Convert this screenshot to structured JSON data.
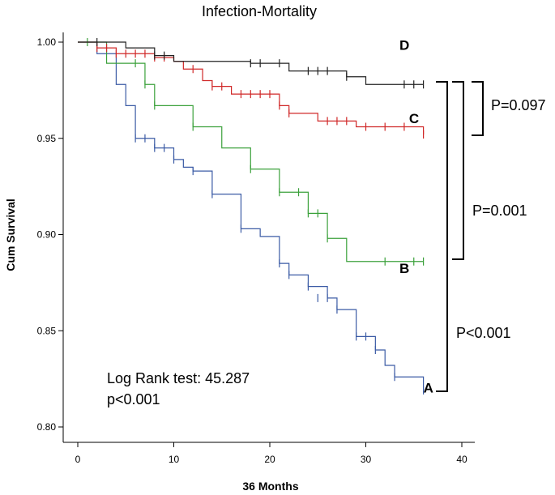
{
  "chart_data": {
    "type": "line",
    "title": "Infection-Mortality",
    "xlabel": "36 Months",
    "ylabel": "Cum Survival",
    "xlim": [
      0,
      40
    ],
    "ylim": [
      0.8,
      1.0
    ],
    "xticks": [
      "0",
      "10",
      "20",
      "30",
      "40"
    ],
    "yticks": [
      "0.80",
      "0.85",
      "0.90",
      "0.95",
      "1.00"
    ],
    "grid": false,
    "series": [
      {
        "name": "A",
        "color": "#3b5ba5",
        "steps": [
          [
            0,
            1.0
          ],
          [
            2,
            0.994
          ],
          [
            4,
            0.978
          ],
          [
            5,
            0.967
          ],
          [
            6,
            0.95
          ],
          [
            8,
            0.945
          ],
          [
            9,
            0.945
          ],
          [
            10,
            0.939
          ],
          [
            11,
            0.935
          ],
          [
            12,
            0.933
          ],
          [
            14,
            0.921
          ],
          [
            17,
            0.903
          ],
          [
            19,
            0.899
          ],
          [
            21,
            0.885
          ],
          [
            22,
            0.879
          ],
          [
            24,
            0.873
          ],
          [
            26,
            0.867
          ],
          [
            27,
            0.861
          ],
          [
            29,
            0.847
          ],
          [
            31,
            0.84
          ],
          [
            32,
            0.832
          ],
          [
            33,
            0.826
          ],
          [
            36,
            0.819
          ]
        ],
        "censors": [
          [
            6,
            0.95
          ],
          [
            7,
            0.95
          ],
          [
            8,
            0.945
          ],
          [
            9,
            0.945
          ],
          [
            10,
            0.939
          ],
          [
            12,
            0.933
          ],
          [
            14,
            0.921
          ],
          [
            17,
            0.903
          ],
          [
            21,
            0.885
          ],
          [
            22,
            0.879
          ],
          [
            24,
            0.873
          ],
          [
            25,
            0.867
          ],
          [
            26,
            0.867
          ],
          [
            27,
            0.861
          ],
          [
            29,
            0.847
          ],
          [
            30,
            0.847
          ],
          [
            31,
            0.84
          ],
          [
            33,
            0.826
          ],
          [
            36,
            0.819
          ]
        ]
      },
      {
        "name": "B",
        "color": "#3ba13b",
        "steps": [
          [
            0,
            1.0
          ],
          [
            3,
            0.989
          ],
          [
            7,
            0.978
          ],
          [
            8,
            0.967
          ],
          [
            12,
            0.956
          ],
          [
            15,
            0.945
          ],
          [
            18,
            0.934
          ],
          [
            21,
            0.922
          ],
          [
            24,
            0.911
          ],
          [
            26,
            0.898
          ],
          [
            28,
            0.886
          ],
          [
            36,
            0.886
          ]
        ],
        "censors": [
          [
            1,
            1.0
          ],
          [
            6,
            0.989
          ],
          [
            7,
            0.978
          ],
          [
            8,
            0.967
          ],
          [
            12,
            0.956
          ],
          [
            18,
            0.934
          ],
          [
            21,
            0.922
          ],
          [
            23,
            0.922
          ],
          [
            24,
            0.911
          ],
          [
            25,
            0.911
          ],
          [
            26,
            0.898
          ],
          [
            32,
            0.886
          ],
          [
            35,
            0.886
          ],
          [
            36,
            0.886
          ]
        ]
      },
      {
        "name": "C",
        "color": "#d02828",
        "steps": [
          [
            0,
            1.0
          ],
          [
            2,
            0.997
          ],
          [
            4,
            0.994
          ],
          [
            8,
            0.992
          ],
          [
            10,
            0.99
          ],
          [
            11,
            0.986
          ],
          [
            13,
            0.98
          ],
          [
            14,
            0.977
          ],
          [
            16,
            0.973
          ],
          [
            21,
            0.967
          ],
          [
            22,
            0.963
          ],
          [
            25,
            0.959
          ],
          [
            29,
            0.956
          ],
          [
            36,
            0.952
          ]
        ],
        "censors": [
          [
            2,
            0.997
          ],
          [
            3,
            0.997
          ],
          [
            4,
            0.994
          ],
          [
            5,
            0.994
          ],
          [
            6,
            0.994
          ],
          [
            7,
            0.994
          ],
          [
            8,
            0.992
          ],
          [
            9,
            0.992
          ],
          [
            12,
            0.986
          ],
          [
            14,
            0.977
          ],
          [
            15,
            0.977
          ],
          [
            17,
            0.973
          ],
          [
            18,
            0.973
          ],
          [
            19,
            0.973
          ],
          [
            20,
            0.973
          ],
          [
            21,
            0.967
          ],
          [
            22,
            0.963
          ],
          [
            26,
            0.959
          ],
          [
            27,
            0.959
          ],
          [
            28,
            0.959
          ],
          [
            30,
            0.956
          ],
          [
            32,
            0.956
          ],
          [
            34,
            0.956
          ],
          [
            36,
            0.952
          ]
        ]
      },
      {
        "name": "D",
        "color": "#222222",
        "steps": [
          [
            0,
            1.0
          ],
          [
            5,
            0.997
          ],
          [
            8,
            0.993
          ],
          [
            10,
            0.99
          ],
          [
            18,
            0.989
          ],
          [
            22,
            0.985
          ],
          [
            28,
            0.982
          ],
          [
            30,
            0.978
          ],
          [
            36,
            0.978
          ]
        ],
        "censors": [
          [
            2,
            1.0
          ],
          [
            8,
            0.993
          ],
          [
            9,
            0.993
          ],
          [
            18,
            0.989
          ],
          [
            19,
            0.989
          ],
          [
            21,
            0.989
          ],
          [
            24,
            0.985
          ],
          [
            25,
            0.985
          ],
          [
            26,
            0.985
          ],
          [
            28,
            0.982
          ],
          [
            34,
            0.978
          ],
          [
            35,
            0.978
          ],
          [
            36,
            0.978
          ]
        ]
      }
    ],
    "curve_labels": [
      {
        "name": "A",
        "x": 36,
        "y": 0.818
      },
      {
        "name": "B",
        "x": 33.5,
        "y": 0.88
      },
      {
        "name": "C",
        "x": 34.5,
        "y": 0.958
      },
      {
        "name": "D",
        "x": 33.5,
        "y": 0.996
      }
    ],
    "annotations": {
      "logrank_line1": "Log Rank test: 45.287",
      "logrank_line2": "p<0.001",
      "p_cd": "P=0.097",
      "p_bd": "P=0.001",
      "p_ad": "P<0.001"
    }
  }
}
